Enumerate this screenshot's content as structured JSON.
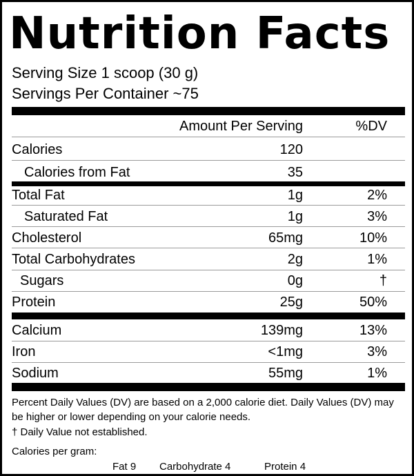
{
  "title": "Nutrition Facts",
  "serving_size": "Serving Size  1 scoop (30 g)",
  "servings_per_container": "Servings Per Container  ~75",
  "headers": {
    "amount": "Amount Per Serving",
    "dv": "%DV"
  },
  "calories": [
    {
      "name": "Calories",
      "amount": "120",
      "dv": ""
    },
    {
      "name": "Calories from Fat",
      "amount": "35",
      "dv": ""
    }
  ],
  "nutrients": [
    {
      "name": "Total Fat",
      "amount": "1g",
      "dv": "2%"
    },
    {
      "name": "Saturated Fat",
      "amount": "1g",
      "dv": "3%"
    },
    {
      "name": "Cholesterol",
      "amount": "65mg",
      "dv": "10%"
    },
    {
      "name": "Total Carbohydrates",
      "amount": "2g",
      "dv": "1%"
    },
    {
      "name": "Sugars",
      "amount": "0g",
      "dv": "†"
    },
    {
      "name": "Protein",
      "amount": "25g",
      "dv": "50%"
    }
  ],
  "minerals": [
    {
      "name": "Calcium",
      "amount": "139mg",
      "dv": "13%"
    },
    {
      "name": "Iron",
      "amount": "<1mg",
      "dv": "3%"
    },
    {
      "name": "Sodium",
      "amount": "55mg",
      "dv": "1%"
    }
  ],
  "footnote": "Percent Daily Values (DV) are based on a 2,000 calorie diet. Daily Values (DV) may be higher or lower depending on your calorie needs.",
  "dagger_note": "† Daily Value not established.",
  "calories_per_gram": {
    "label": "Calories per gram:",
    "fat": "Fat 9",
    "carbohydrate": "Carbohydrate 4",
    "protein": "Protein 4"
  }
}
